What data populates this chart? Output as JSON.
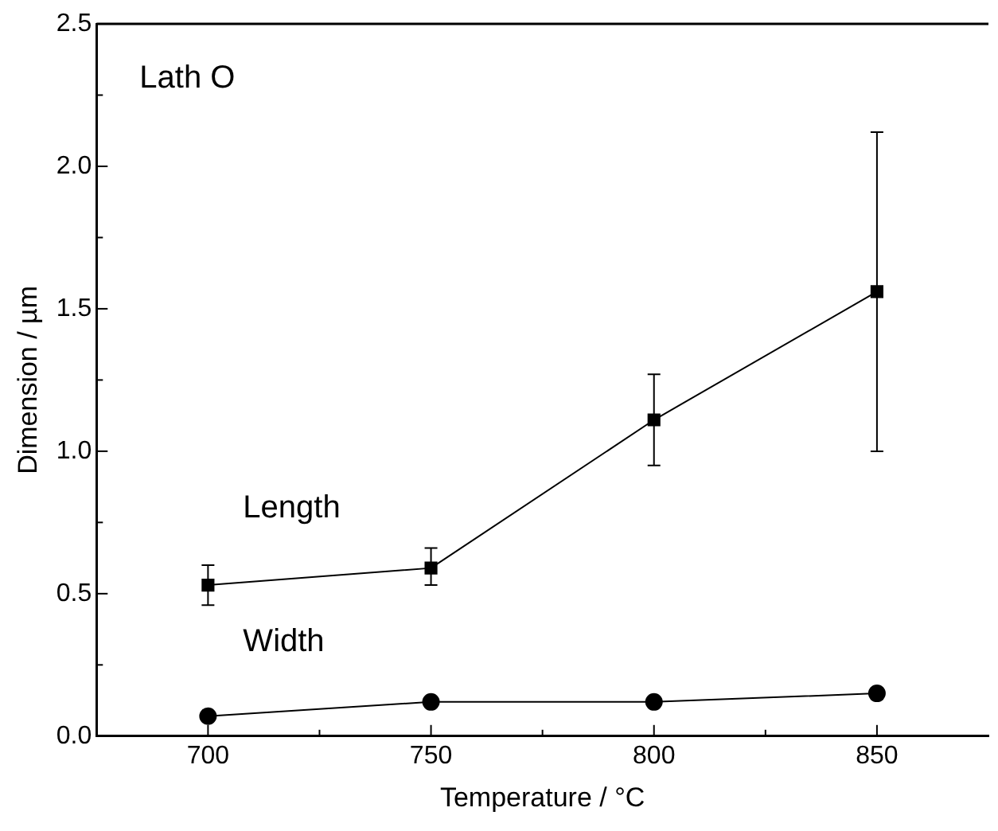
{
  "chart_data": {
    "type": "line",
    "xlabel": "Temperature / °C",
    "ylabel": "Dimension / µm",
    "annotations": [
      "Lath O"
    ],
    "x": [
      700,
      750,
      800,
      850
    ],
    "series": [
      {
        "name": "Length",
        "color": "#000000",
        "marker": "square",
        "values": [
          0.53,
          0.59,
          1.11,
          1.56
        ],
        "errors": [
          [
            0.46,
            0.6
          ],
          [
            0.53,
            0.66
          ],
          [
            0.95,
            1.27
          ],
          [
            1.0,
            2.12
          ]
        ]
      },
      {
        "name": "Width",
        "color": "#000000",
        "marker": "circle",
        "values": [
          0.07,
          0.12,
          0.12,
          0.15
        ],
        "errors": [
          null,
          null,
          null,
          [
            0.13,
            0.17
          ]
        ]
      }
    ],
    "xlim": [
      675,
      875
    ],
    "xticks": [
      700,
      {
        "value": 725,
        "label": null
      },
      750,
      {
        "value": 775,
        "label": null
      },
      800,
      {
        "value": 825,
        "label": null
      },
      850
    ],
    "ylim": [
      0,
      2.5
    ],
    "yticks": [
      {
        "value": 0,
        "label": "0.0"
      },
      {
        "value": 0.25,
        "label": null
      },
      {
        "value": 0.5,
        "label": "0.5"
      },
      {
        "value": 0.75,
        "label": null
      },
      {
        "value": 1,
        "label": "1.0"
      },
      {
        "value": 1.25,
        "label": null
      },
      {
        "value": 1.5,
        "label": "1.5"
      },
      {
        "value": 1.75,
        "label": null
      },
      {
        "value": 2,
        "label": "2.0"
      },
      {
        "value": 2.25,
        "label": null
      },
      {
        "value": 2.5,
        "label": "2.5"
      }
    ],
    "grid": false,
    "legend": false
  }
}
